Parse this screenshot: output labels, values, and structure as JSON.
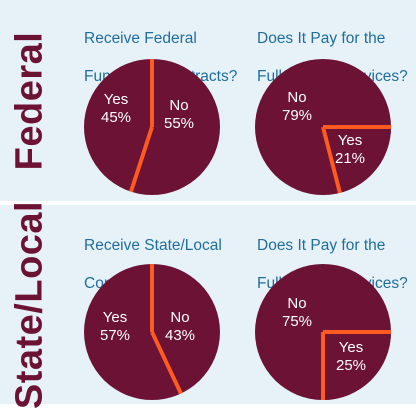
{
  "row_labels": {
    "federal": "Federal",
    "state_local": "State/Local"
  },
  "colors": {
    "pie_fill": "#6b1235",
    "divider": "#ff5a1f",
    "question_text": "#1f6e9c",
    "row_label": "#6b1235",
    "background": "#e7f1f8"
  },
  "chart_data": [
    {
      "type": "pie",
      "title": "Receive Federal Funding or Contracts?",
      "title_lines": [
        "Receive Federal",
        "Funding or Contracts?"
      ],
      "slices": [
        {
          "label": "Yes",
          "value": 45,
          "display": "45%"
        },
        {
          "label": "No",
          "value": 55,
          "display": "55%"
        }
      ]
    },
    {
      "type": "pie",
      "title": "Does It Pay for the Full Cost of Services?",
      "title_lines": [
        "Does It Pay for the",
        "Full Cost of Services?"
      ],
      "slices": [
        {
          "label": "Yes",
          "value": 21,
          "display": "21%"
        },
        {
          "label": "No",
          "value": 79,
          "display": "79%"
        }
      ]
    },
    {
      "type": "pie",
      "title": "Receive State/Local Contracts?",
      "title_lines": [
        "Receive State/Local",
        "Contracts?"
      ],
      "slices": [
        {
          "label": "Yes",
          "value": 57,
          "display": "57%"
        },
        {
          "label": "No",
          "value": 43,
          "display": "43%"
        }
      ]
    },
    {
      "type": "pie",
      "title": "Does It Pay for the Full Cost of Services?",
      "title_lines": [
        "Does It Pay for the",
        "Full Cost of Services?"
      ],
      "slices": [
        {
          "label": "Yes",
          "value": 25,
          "display": "25%"
        },
        {
          "label": "No",
          "value": 75,
          "display": "75%"
        }
      ]
    }
  ]
}
